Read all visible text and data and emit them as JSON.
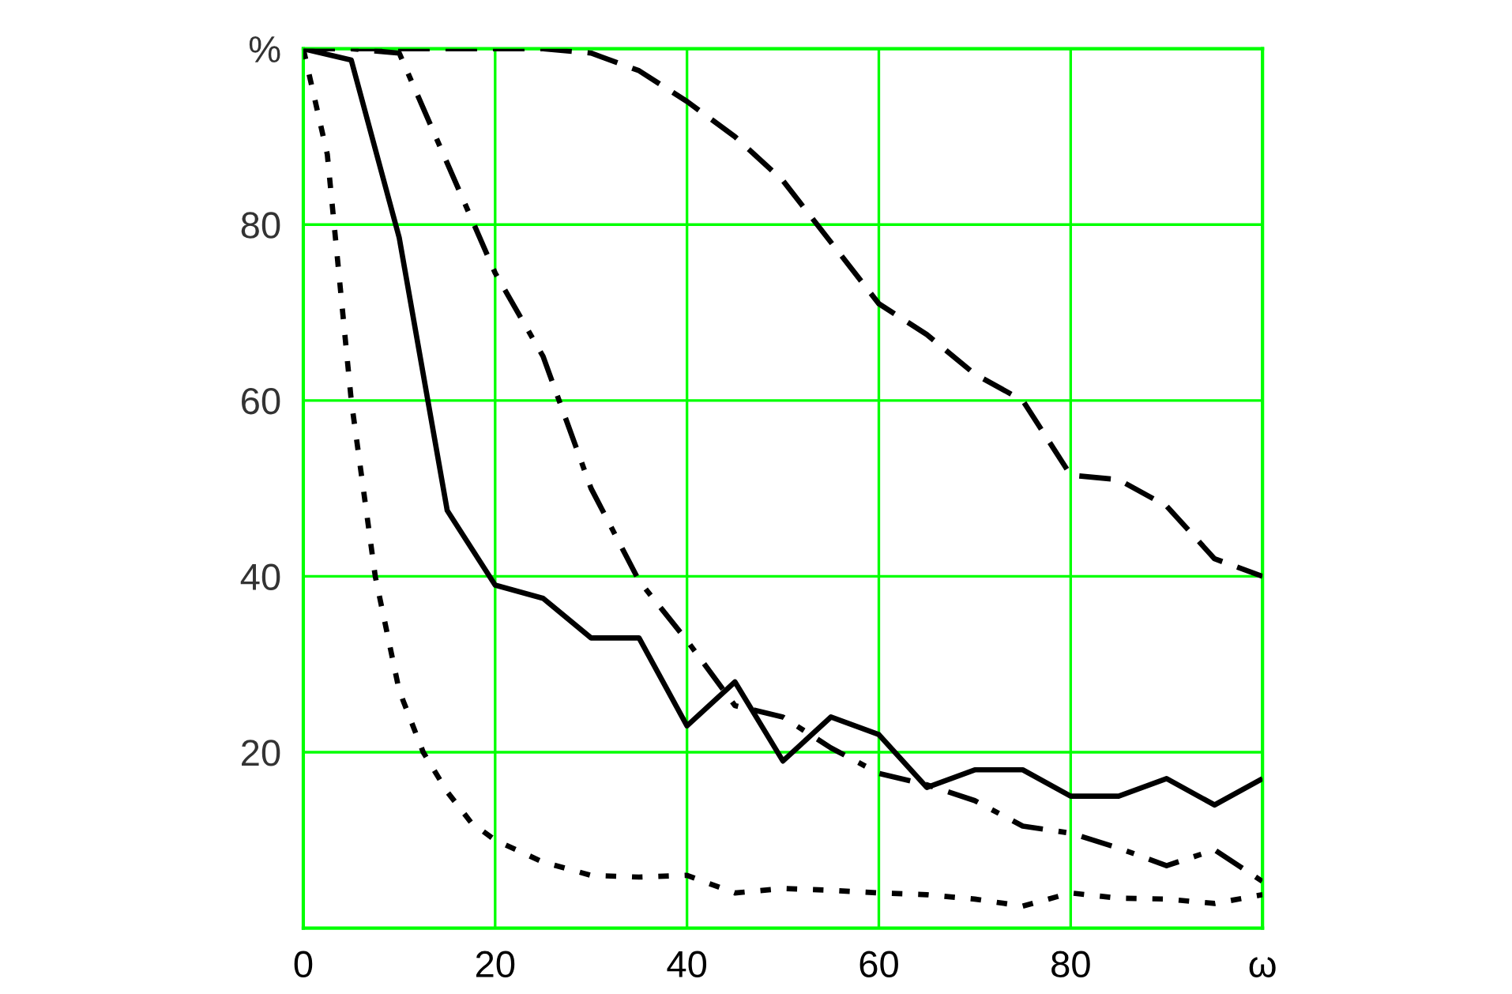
{
  "chart_data": {
    "type": "line",
    "xlim": [
      0,
      100
    ],
    "ylim": [
      0,
      100
    ],
    "xticks": [
      0,
      20,
      40,
      60,
      80,
      {
        "value": 100,
        "label": "ω"
      }
    ],
    "yticks": [
      20,
      40,
      60,
      80,
      {
        "value": 100,
        "label": "%"
      }
    ],
    "grid": true,
    "series": [
      {
        "color": "#000000",
        "line_style": "solid",
        "x": [
          0,
          5,
          10,
          15,
          20,
          25,
          30,
          35,
          40,
          45,
          50,
          55,
          60,
          65,
          70,
          75,
          80,
          85,
          90,
          95,
          100
        ],
        "values": [
          100,
          98.7,
          78.5,
          47.5,
          39,
          37.5,
          33,
          33,
          23,
          28,
          19,
          24,
          22,
          16,
          18,
          18,
          15,
          15,
          17,
          14,
          17
        ]
      },
      {
        "color": "#000000",
        "line_style": "dashed",
        "x": [
          0,
          5,
          10,
          15,
          20,
          25,
          30,
          35,
          40,
          45,
          50,
          55,
          60,
          65,
          70,
          75,
          80,
          85,
          90,
          95,
          100
        ],
        "values": [
          100,
          100,
          100,
          100,
          100,
          100,
          99.5,
          97.5,
          94,
          90,
          85,
          78,
          71,
          67.5,
          63,
          60,
          51.5,
          51,
          48,
          42,
          40
        ]
      },
      {
        "color": "#000000",
        "line_style": "dashdot",
        "x": [
          0,
          5,
          10,
          15,
          20,
          25,
          30,
          35,
          40,
          45,
          50,
          55,
          60,
          65,
          70,
          75,
          80,
          85,
          90,
          95,
          100
        ],
        "values": [
          100,
          100,
          99.5,
          87,
          74.5,
          65,
          50,
          39.5,
          32.7,
          25.3,
          24,
          20.5,
          17.6,
          16.3,
          14.5,
          11.6,
          10.8,
          9.1,
          7.1,
          8.9,
          5.3
        ]
      },
      {
        "color": "#000000",
        "line_style": "dotted",
        "x": [
          0,
          2.5,
          5,
          7.5,
          10,
          12.5,
          15,
          17.5,
          20,
          25,
          30,
          35,
          40,
          45,
          50,
          55,
          60,
          65,
          70,
          75,
          80,
          85,
          90,
          95,
          100
        ],
        "values": [
          100,
          88,
          60,
          40,
          27,
          20,
          15.5,
          12,
          10,
          7.5,
          6,
          5.8,
          6,
          4,
          4.5,
          4.3,
          4,
          3.8,
          3.3,
          2.5,
          4,
          3.4,
          3.3,
          2.8,
          3.8
        ]
      }
    ]
  }
}
